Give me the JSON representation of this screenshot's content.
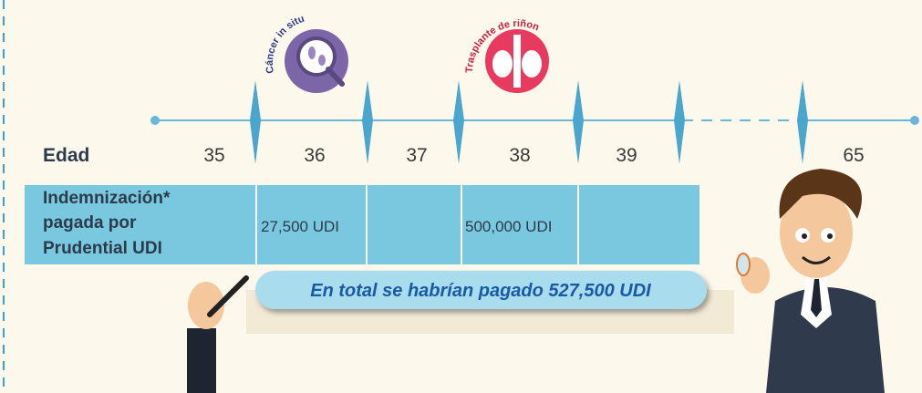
{
  "icons": [
    {
      "label": "Cáncer in situ"
    },
    {
      "label": "Trasplante de riñon"
    }
  ],
  "timeline": {
    "label": "Edad",
    "ages": [
      "35",
      "36",
      "37",
      "38",
      "39",
      "65"
    ]
  },
  "table": {
    "header_lines": [
      "Indemnización*",
      "pagada por",
      "Prudential UDI"
    ],
    "cells": [
      "27,500 UDI",
      "500,000 UDI"
    ]
  },
  "total": "En total se habrían pagado 527,500 UDI"
}
